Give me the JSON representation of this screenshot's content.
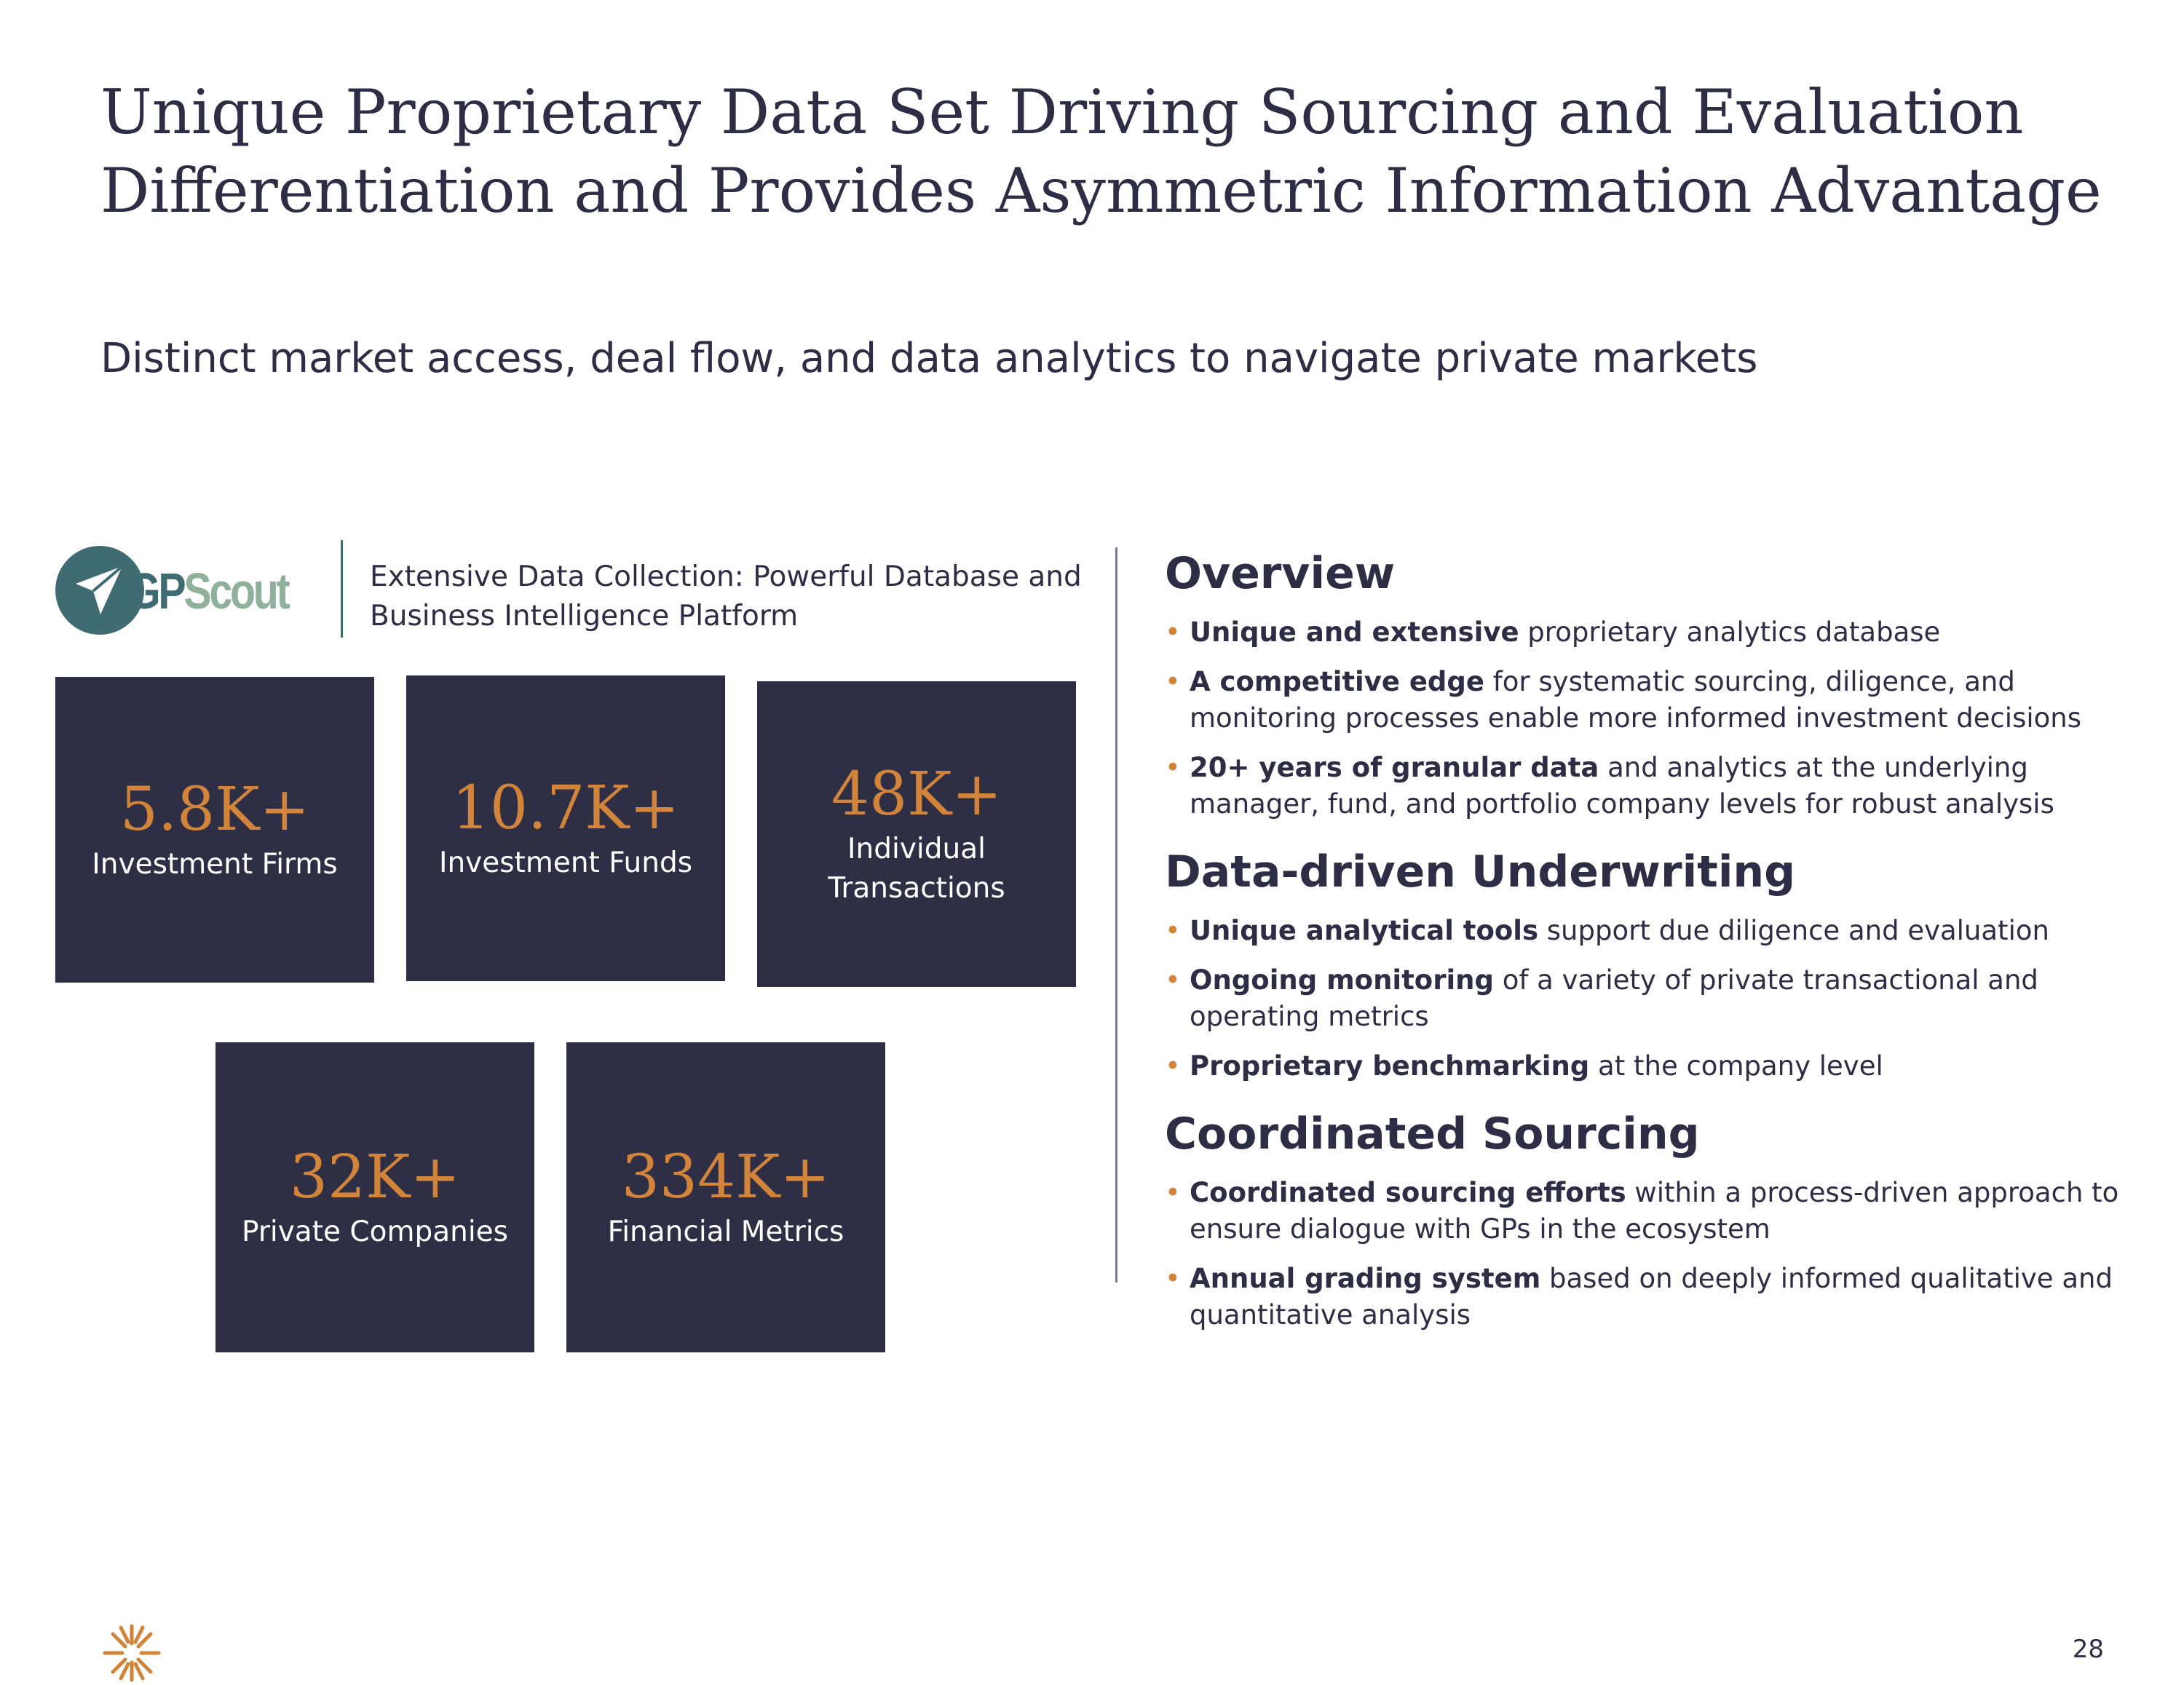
{
  "title": {
    "line1": "Unique Proprietary Data Set Driving Sourcing and Evaluation",
    "line2": "Differentiation and Provides Asymmetric Information Advantage"
  },
  "subtitle": "Distinct market access, deal flow, and data analytics to navigate private markets",
  "logo": {
    "gp": "GP",
    "scout": "Scout",
    "icon": "paper-plane-icon",
    "description": "Extensive Data Collection: Powerful Database and Business Intelligence Platform"
  },
  "tiles": [
    {
      "value": "5.8K+",
      "label": "Investment Firms"
    },
    {
      "value": "10.7K+",
      "label": "Investment Funds"
    },
    {
      "value": "48K+",
      "label": "Individual Transactions"
    },
    {
      "value": "32K+",
      "label": "Private Companies"
    },
    {
      "value": "334K+",
      "label": "Financial Metrics"
    }
  ],
  "sections": [
    {
      "heading": "Overview",
      "bullets": [
        {
          "bold": "Unique and extensive",
          "text": " proprietary analytics database"
        },
        {
          "bold": "A competitive edge",
          "text": " for systematic sourcing, diligence, and monitoring processes enable more informed investment decisions"
        },
        {
          "bold": "20+ years of granular data",
          "text": " and analytics at the underlying manager, fund, and portfolio company levels for robust analysis"
        }
      ]
    },
    {
      "heading": "Data-driven Underwriting",
      "bullets": [
        {
          "bold": "Unique analytical tools",
          "text": " support due diligence and evaluation"
        },
        {
          "bold": "Ongoing monitoring",
          "text": " of a variety of private transactional and operating metrics"
        },
        {
          "bold": "Proprietary benchmarking",
          "text": " at the company level"
        }
      ]
    },
    {
      "heading": "Coordinated Sourcing",
      "bullets": [
        {
          "bold": "Coordinated sourcing efforts",
          "text": " within a process-driven approach to ensure dialogue with GPs in the ecosystem"
        },
        {
          "bold": "Annual grading system",
          "text": " based on deeply informed qualitative and quantitative analysis"
        }
      ]
    }
  ],
  "bullet_glyph": "•",
  "colors": {
    "navy": "#2e2f45",
    "accent": "#d1843a",
    "teal": "#3f6b73",
    "sage": "#8fb09a"
  },
  "footer": {
    "logo_icon": "starburst-logo-icon",
    "page_number": "28"
  }
}
